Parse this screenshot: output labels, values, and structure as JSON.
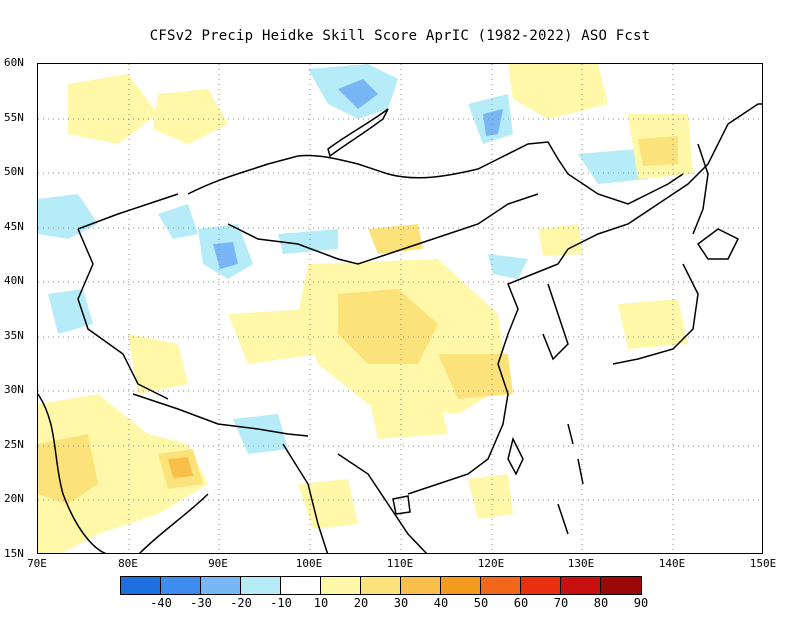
{
  "title": "CFSv2 Precip Heidke Skill Score AprIC (1982-2022) ASO Fcst",
  "map": {
    "lat_labels": [
      "60N",
      "55N",
      "50N",
      "45N",
      "40N",
      "35N",
      "30N",
      "25N",
      "20N",
      "15N"
    ],
    "lon_labels": [
      "70E",
      "80E",
      "90E",
      "100E",
      "110E",
      "120E",
      "130E",
      "140E",
      "150E"
    ],
    "lat_range": [
      15,
      60
    ],
    "lon_range": [
      70,
      150
    ],
    "gridlines": "dotted, every 5 degrees latitude and 10 degrees longitude"
  },
  "legend": {
    "labels": [
      "-40",
      "-30",
      "-20",
      "-10",
      "10",
      "20",
      "30",
      "40",
      "50",
      "60",
      "70",
      "80",
      "90"
    ],
    "colors": [
      "#1e6fe0",
      "#3e8cf0",
      "#78b6f5",
      "#b6ecf7",
      "#ffffff",
      "#fff8a8",
      "#fbe27a",
      "#f8bf4b",
      "#f49b1d",
      "#f2671a",
      "#e8300f",
      "#c81010",
      "#9a0808"
    ]
  }
}
